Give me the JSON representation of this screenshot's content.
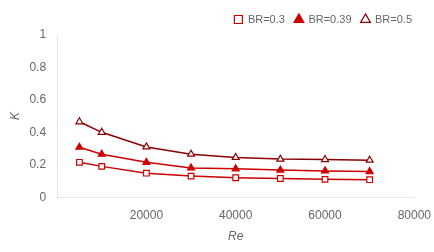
{
  "chart_data": {
    "type": "line",
    "x": [
      5000,
      10000,
      20000,
      30000,
      40000,
      50000,
      60000,
      70000
    ],
    "series": [
      {
        "name": "BR=0.3",
        "color": "#cc0000",
        "marker": "square_open",
        "values": [
          0.215,
          0.19,
          0.148,
          0.13,
          0.12,
          0.115,
          0.11,
          0.108
        ]
      },
      {
        "name": "BR=0.39",
        "color": "#cc0000",
        "marker": "triangle",
        "values": [
          0.308,
          0.265,
          0.215,
          0.18,
          0.175,
          0.167,
          0.162,
          0.158
        ]
      },
      {
        "name": "BR=0.5",
        "color": "#8B0000",
        "marker": "triangle_down_open",
        "values": [
          0.465,
          0.4,
          0.31,
          0.265,
          0.245,
          0.235,
          0.232,
          0.228
        ]
      }
    ],
    "xlabel": "Re",
    "ylabel": "K",
    "xlim": [
      0,
      80000
    ],
    "ylim": [
      0,
      1.0
    ],
    "xticks": [
      20000,
      40000,
      60000,
      80000
    ],
    "yticks": [
      0,
      0.2,
      0.4,
      0.6,
      0.8,
      1
    ],
    "grid": false,
    "legend": "upper right"
  }
}
